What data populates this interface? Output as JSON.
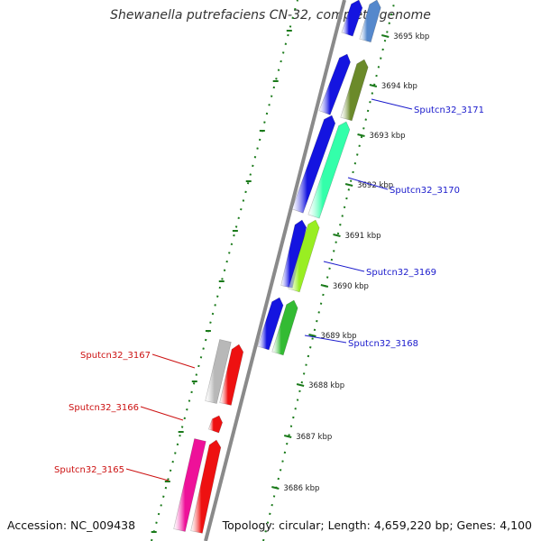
{
  "title": "Shewanella putrefaciens CN-32, complete genome",
  "footer": {
    "accession": "Accession: NC_009438",
    "topology": "Topology: circular; Length: 4,659,220 bp; Genes: 4,100"
  },
  "colors": {
    "forward_label": "#1a1acc",
    "reverse_label": "#cc1111",
    "backbone": "#8a8a8a",
    "tick": "#1a7a1a"
  },
  "scale": {
    "unit": "kbp",
    "ticks": [
      "3686 kbp",
      "3687 kbp",
      "3688 kbp",
      "3689 kbp",
      "3690 kbp",
      "3691 kbp",
      "3692 kbp",
      "3693 kbp",
      "3694 kbp",
      "3695 kbp"
    ]
  },
  "genes": [
    {
      "label": "Sputcn32_3171",
      "strand": "forward",
      "color": "#6b8a2a"
    },
    {
      "label": "Sputcn32_3170",
      "strand": "forward",
      "color": "#33ffaa"
    },
    {
      "label": "Sputcn32_3169",
      "strand": "forward",
      "color": "#99ee22"
    },
    {
      "label": "Sputcn32_3168",
      "strand": "forward",
      "color": "#33bb33"
    },
    {
      "label": "Sputcn32_3167",
      "strand": "reverse",
      "color": "#b8b8b8"
    },
    {
      "label": "Sputcn32_3166",
      "strand": "reverse",
      "color": "#ee1111"
    },
    {
      "label": "Sputcn32_3165",
      "strand": "reverse",
      "color": "#ee1199"
    }
  ]
}
